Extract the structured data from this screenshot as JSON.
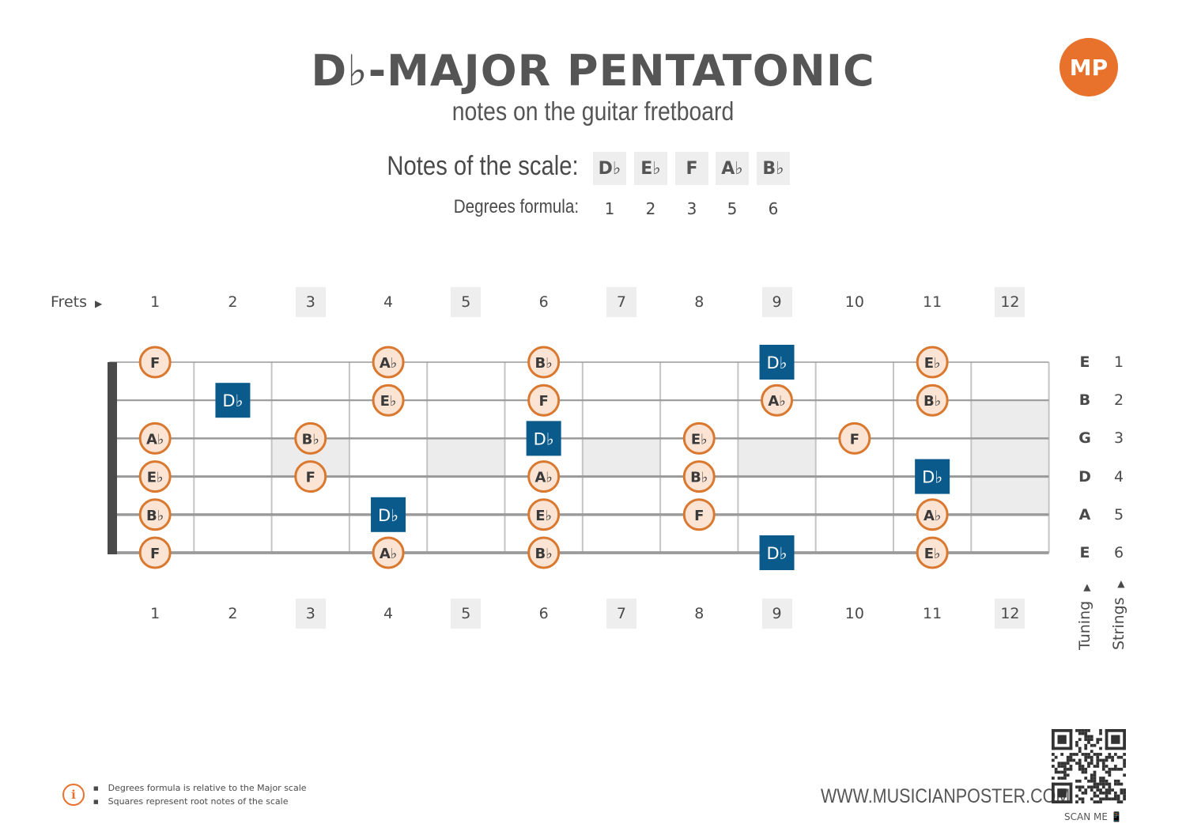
{
  "header": {
    "title": "D♭-MAJOR PENTATONIC",
    "subtitle": "notes on the guitar fretboard",
    "logo_text": "MP"
  },
  "scale": {
    "notes_label": "Notes of the scale:",
    "notes": [
      "D♭",
      "E♭",
      "F",
      "A♭",
      "B♭"
    ],
    "degrees_label": "Degrees formula:",
    "degrees": [
      "1",
      "2",
      "3",
      "5",
      "6"
    ]
  },
  "fretboard": {
    "frets_label": "Frets",
    "fret_numbers": [
      "1",
      "2",
      "3",
      "4",
      "5",
      "6",
      "7",
      "8",
      "9",
      "10",
      "11",
      "12"
    ],
    "marker_frets": [
      3,
      5,
      7,
      9,
      12
    ],
    "tuning": [
      "E",
      "B",
      "G",
      "D",
      "A",
      "E"
    ],
    "string_numbers": [
      "1",
      "2",
      "3",
      "4",
      "5",
      "6"
    ],
    "tuning_label": "Tuning",
    "strings_label": "Strings",
    "root_note": "D♭",
    "strings": [
      [
        "F",
        "",
        "",
        "A♭",
        "",
        "B♭",
        "",
        "",
        "D♭",
        "",
        "E♭",
        ""
      ],
      [
        "",
        "D♭",
        "",
        "E♭",
        "",
        "F",
        "",
        "",
        "A♭",
        "",
        "B♭",
        ""
      ],
      [
        "A♭",
        "",
        "B♭",
        "",
        "",
        "D♭",
        "",
        "E♭",
        "",
        "F",
        "",
        ""
      ],
      [
        "E♭",
        "",
        "F",
        "",
        "",
        "A♭",
        "",
        "B♭",
        "",
        "",
        "D♭",
        ""
      ],
      [
        "B♭",
        "",
        "",
        "D♭",
        "",
        "E♭",
        "",
        "F",
        "",
        "",
        "A♭",
        ""
      ],
      [
        "F",
        "",
        "",
        "A♭",
        "",
        "B♭",
        "",
        "",
        "D♭",
        "",
        "E♭",
        ""
      ]
    ],
    "colors": {
      "root": "#0a5a8c",
      "note_fill": "#fbe4d3",
      "note_border": "#d9782e",
      "string": "#9a9a9a"
    }
  },
  "footer": {
    "info": [
      "Degrees formula is relative to the Major scale",
      "Squares represent root notes of the scale"
    ],
    "url": "WWW.MUSICIANPOSTER.COM",
    "scan": "SCAN ME 📱"
  }
}
